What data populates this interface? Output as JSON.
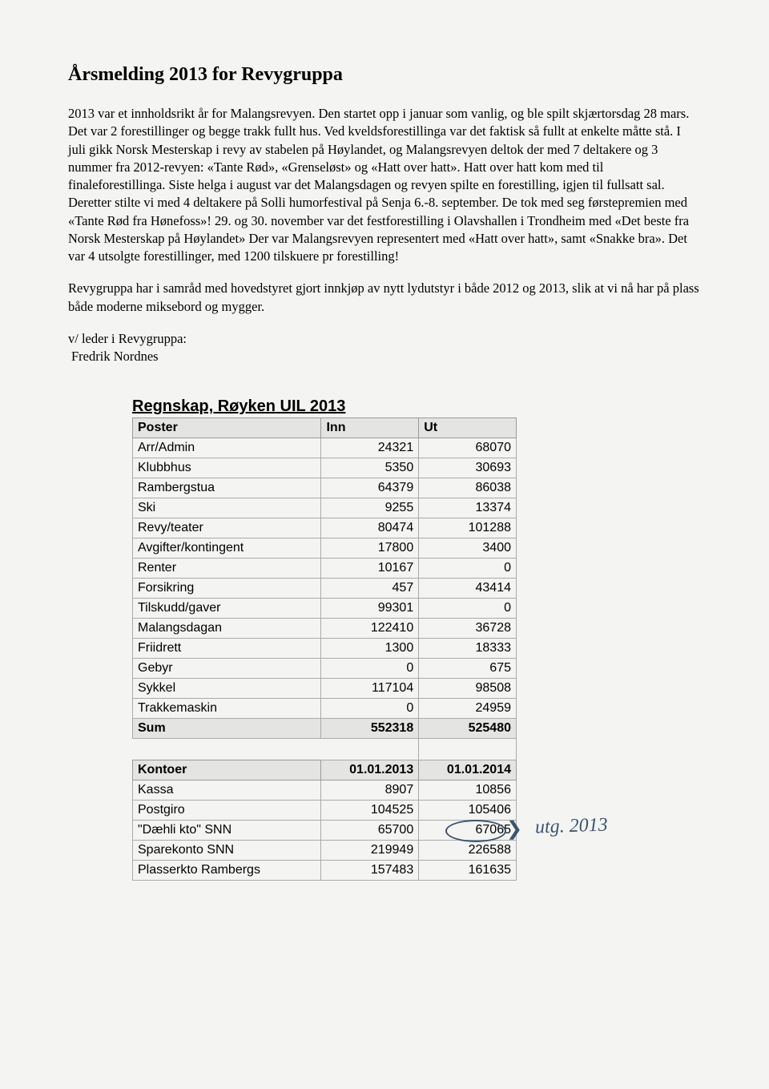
{
  "title": "Årsmelding 2013 for Revygruppa",
  "paragraphs": {
    "p1": "2013 var et innholdsrikt år for Malangsrevyen. Den startet opp i januar som vanlig, og ble spilt skjærtorsdag 28 mars. Det var 2 forestillinger og begge trakk fullt hus. Ved kveldsforestillinga var det faktisk så fullt at enkelte måtte stå. I juli gikk Norsk Mesterskap i revy av stabelen på Høylandet, og Malangsrevyen deltok der med 7 deltakere og 3 nummer fra 2012-revyen: «Tante Rød», «Grenseløst» og «Hatt over hatt». Hatt over hatt kom med til finaleforestillinga. Siste helga i august var det Malangsdagen og revyen spilte en forestilling, igjen til fullsatt sal. Deretter stilte vi med 4 deltakere på Solli humorfestival på Senja 6.-8. september. De tok med seg førstepremien med «Tante Rød fra Hønefoss»! 29. og 30. november var det festforestilling i Olavshallen i Trondheim med «Det beste fra Norsk Mesterskap på Høylandet» Der var Malangsrevyen representert med «Hatt over hatt», samt «Snakke bra». Det var 4 utsolgte forestillinger, med 1200 tilskuere pr forestilling!",
    "p2": "Revygruppa har i samråd med hovedstyret gjort innkjøp av nytt lydutstyr i både 2012 og 2013, slik at vi nå har på plass både moderne miksebord og mygger."
  },
  "signature": {
    "line1": "v/ leder i Revygruppa:",
    "line2": "Fredrik Nordnes"
  },
  "accounts": {
    "title": "Regnskap, Røyken UIL 2013",
    "headers": {
      "poster": "Poster",
      "inn": "Inn",
      "ut": "Ut"
    },
    "rows": [
      {
        "label": "Arr/Admin",
        "inn": "24321",
        "ut": "68070"
      },
      {
        "label": "Klubbhus",
        "inn": "5350",
        "ut": "30693"
      },
      {
        "label": "Rambergstua",
        "inn": "64379",
        "ut": "86038"
      },
      {
        "label": "Ski",
        "inn": "9255",
        "ut": "13374"
      },
      {
        "label": "Revy/teater",
        "inn": "80474",
        "ut": "101288"
      },
      {
        "label": "Avgifter/kontingent",
        "inn": "17800",
        "ut": "3400"
      },
      {
        "label": "Renter",
        "inn": "10167",
        "ut": "0"
      },
      {
        "label": "Forsikring",
        "inn": "457",
        "ut": "43414"
      },
      {
        "label": "Tilskudd/gaver",
        "inn": "99301",
        "ut": "0"
      },
      {
        "label": "Malangsdagan",
        "inn": "122410",
        "ut": "36728"
      },
      {
        "label": "Friidrett",
        "inn": "1300",
        "ut": "18333"
      },
      {
        "label": "Gebyr",
        "inn": "0",
        "ut": "675"
      },
      {
        "label": "Sykkel",
        "inn": "117104",
        "ut": "98508"
      },
      {
        "label": "Trakkemaskin",
        "inn": "0",
        "ut": "24959"
      }
    ],
    "sum": {
      "label": "Sum",
      "inn": "552318",
      "ut": "525480"
    },
    "kontoer": {
      "header": {
        "label": "Kontoer",
        "c1": "01.01.2013",
        "c2": "01.01.2014"
      },
      "rows": [
        {
          "label": "Kassa",
          "c1": "8907",
          "c2": "10856"
        },
        {
          "label": "Postgiro",
          "c1": "104525",
          "c2": "105406"
        },
        {
          "label": "\"Dæhli kto\" SNN",
          "c1": "65700",
          "c2": "67065"
        },
        {
          "label": "Sparekonto SNN",
          "c1": "219949",
          "c2": "226588"
        },
        {
          "label": "Plasserkto Rambergs",
          "c1": "157483",
          "c2": "161635"
        }
      ]
    }
  },
  "handwriting": {
    "text": "utg. 2013"
  },
  "style": {
    "page_bg": "#f4f4f2",
    "header_bg": "#e4e4e2",
    "border_color": "#aaa",
    "handwriting_color": "#3b5570",
    "title_fontsize": 24,
    "body_fontsize": 16.5,
    "table_fontsize": 16,
    "table_title_fontsize": 20
  }
}
